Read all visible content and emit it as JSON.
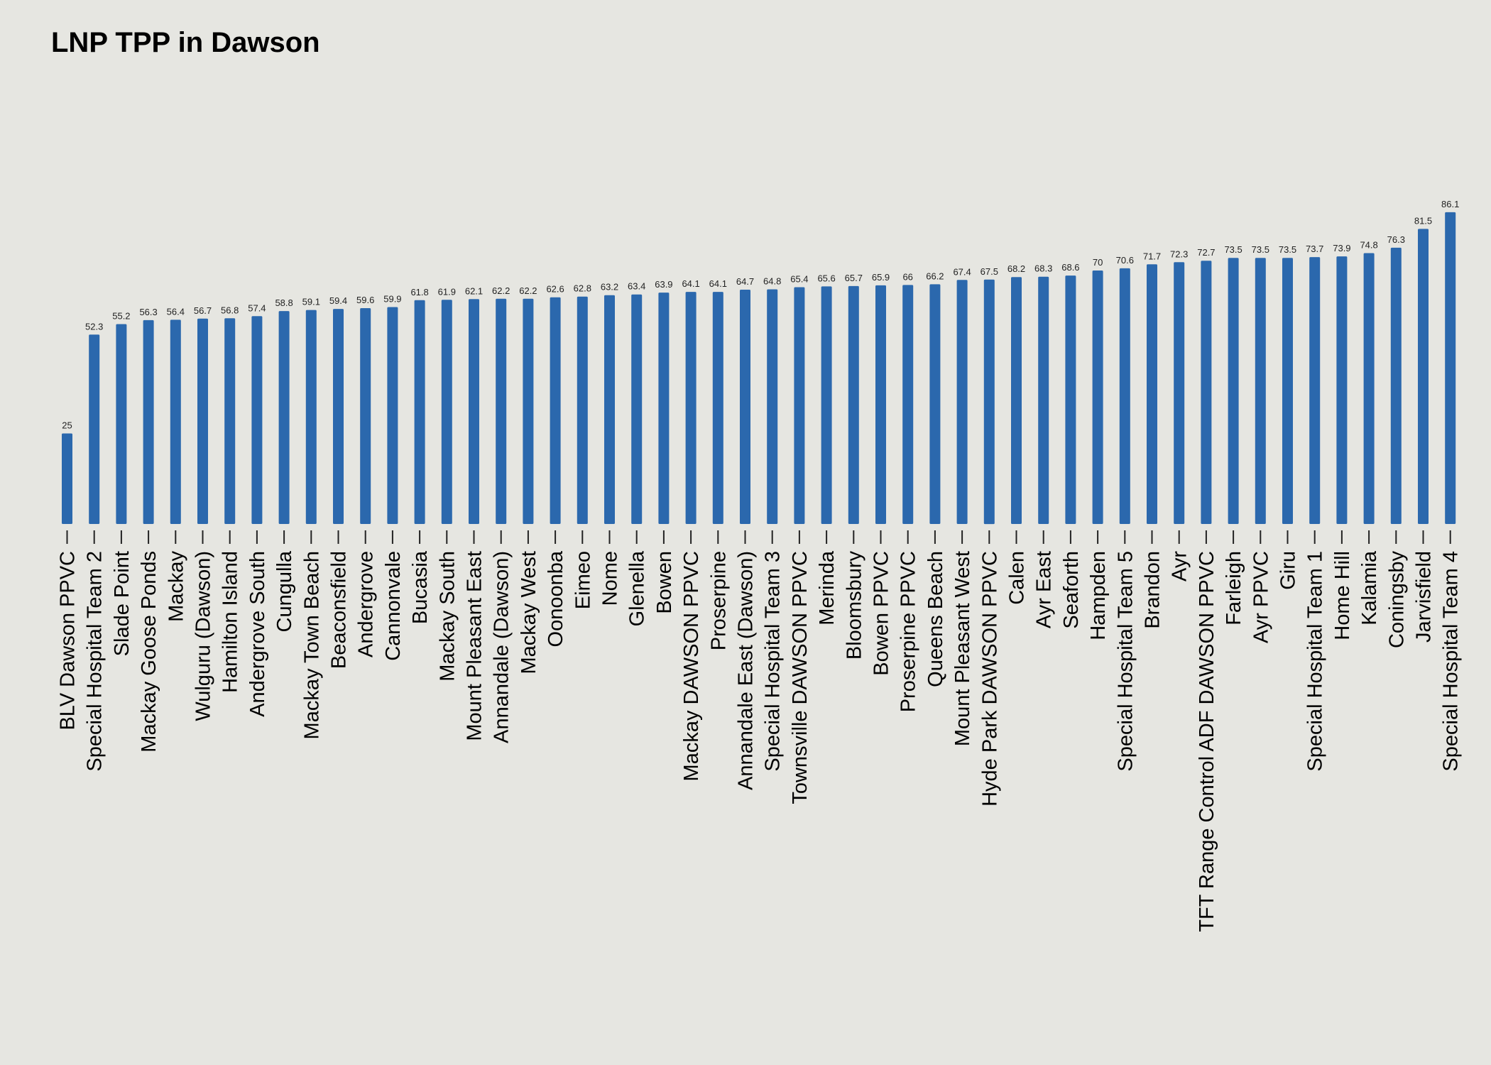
{
  "chart_data": {
    "type": "bar",
    "title": "LNP TPP in Dawson",
    "xlabel": "",
    "ylabel": "",
    "ylim": [
      0,
      100
    ],
    "grid": false,
    "legend": "none",
    "bar_color": "#2b68ad",
    "background_color": "#e6e6e1",
    "categories": [
      "BLV Dawson PPVC",
      "Special Hospital Team 2",
      "Slade Point",
      "Mackay Goose Ponds",
      "Mackay",
      "Wulguru (Dawson)",
      "Hamilton Island",
      "Andergrove South",
      "Cungulla",
      "Mackay Town Beach",
      "Beaconsfield",
      "Andergrove",
      "Cannonvale",
      "Bucasia",
      "Mackay South",
      "Mount Pleasant East",
      "Annandale (Dawson)",
      "Mackay West",
      "Oonoonba",
      "Eimeo",
      "Nome",
      "Glenella",
      "Bowen",
      "Mackay DAWSON PPVC",
      "Proserpine",
      "Annandale East (Dawson)",
      "Special Hospital Team 3",
      "Townsville DAWSON PPVC",
      "Merinda",
      "Bloomsbury",
      "Bowen PPVC",
      "Proserpine PPVC",
      "Queens Beach",
      "Mount Pleasant West",
      "Hyde Park DAWSON PPVC",
      "Calen",
      "Ayr East",
      "Seaforth",
      "Hampden",
      "Special Hospital Team 5",
      "Brandon",
      "Ayr",
      "TFT Range Control ADF DAWSON PPVC",
      "Farleigh",
      "Ayr PPVC",
      "Giru",
      "Special Hospital Team 1",
      "Home Hill",
      "Kalamia",
      "Coningsby",
      "Jarvisfield",
      "Special Hospital Team 4"
    ],
    "values": [
      25,
      52.3,
      55.2,
      56.3,
      56.4,
      56.7,
      56.8,
      57.4,
      58.8,
      59.1,
      59.4,
      59.6,
      59.9,
      61.8,
      61.9,
      62.1,
      62.2,
      62.2,
      62.6,
      62.8,
      63.2,
      63.4,
      63.9,
      64.1,
      64.1,
      64.7,
      64.8,
      65.4,
      65.6,
      65.7,
      65.9,
      66,
      66.2,
      67.4,
      67.5,
      68.2,
      68.3,
      68.6,
      70,
      70.6,
      71.7,
      72.3,
      72.7,
      73.5,
      73.5,
      73.5,
      73.7,
      73.9,
      74.8,
      76.3,
      81.5,
      86.1
    ]
  }
}
